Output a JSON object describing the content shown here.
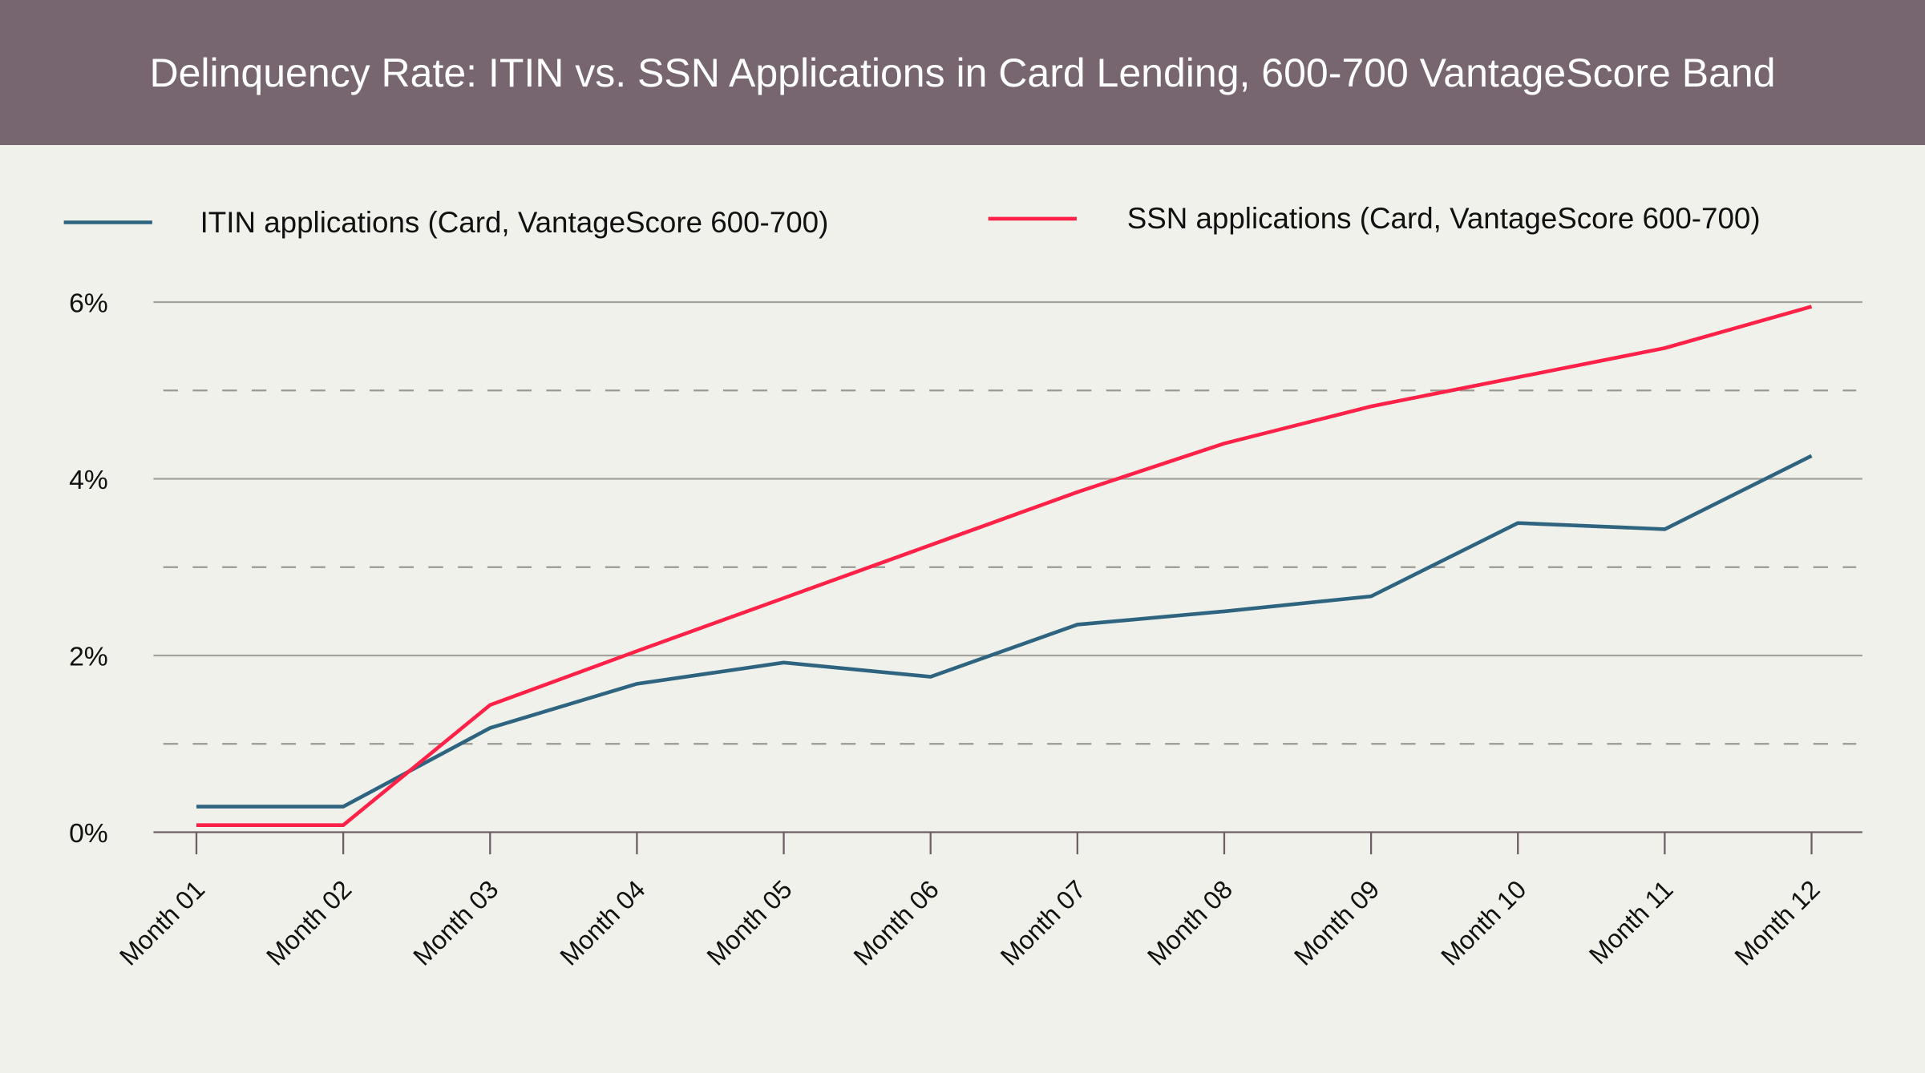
{
  "chart_data": {
    "type": "line",
    "title": "Delinquency Rate: ITIN vs. SSN Applications in Card Lending, 600-700 VantageScore Band",
    "xlabel": "",
    "ylabel": "",
    "categories": [
      "Month 01",
      "Month 02",
      "Month 03",
      "Month 04",
      "Month 05",
      "Month 06",
      "Month 07",
      "Month 08",
      "Month 09",
      "Month 10",
      "Month 11",
      "Month 12"
    ],
    "ylim": [
      0,
      6
    ],
    "yticks": [
      0,
      2,
      4,
      6
    ],
    "ytick_labels": [
      "0%",
      "2%",
      "4%",
      "6%"
    ],
    "minor_gridlines": [
      1,
      3,
      5
    ],
    "grid": true,
    "legend_position": "top",
    "series": [
      {
        "name": "ITIN applications (Card, VantageScore 600-700)",
        "color": "#2e6480",
        "values": [
          0.29,
          0.29,
          1.18,
          1.68,
          1.92,
          1.76,
          2.35,
          2.5,
          2.67,
          3.5,
          3.43,
          4.26
        ]
      },
      {
        "name": "SSN applications (Card, VantageScore 600-700)",
        "color": "#ff2147",
        "values": [
          0.08,
          0.08,
          1.44,
          2.05,
          2.65,
          3.25,
          3.85,
          4.4,
          4.82,
          5.15,
          5.48,
          5.95
        ]
      }
    ]
  }
}
